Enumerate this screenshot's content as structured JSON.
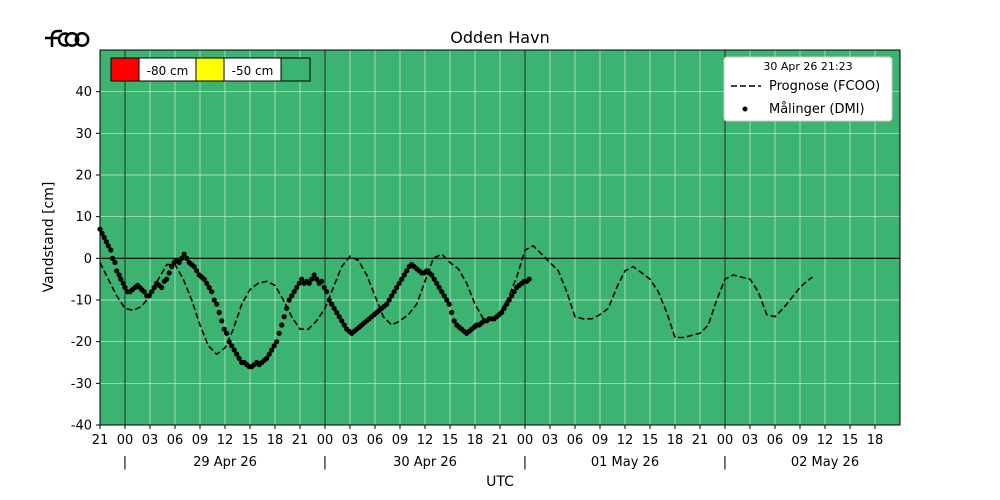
{
  "logo": {
    "text": "fcoo"
  },
  "chart_data": {
    "type": "line",
    "title": "Odden Havn",
    "xlabel": "UTC",
    "ylabel": "Vandstand [cm]",
    "ylim": [
      -40,
      50
    ],
    "yticks": [
      -40,
      -30,
      -20,
      -10,
      0,
      10,
      20,
      30,
      40
    ],
    "x_unit": "hours since 28 Apr 26 21:00 UTC",
    "xlim": [
      0,
      96
    ],
    "xtick_labels": [
      "21",
      "00",
      "03",
      "06",
      "09",
      "12",
      "15",
      "18",
      "21",
      "00",
      "03",
      "06",
      "09",
      "12",
      "15",
      "18",
      "21",
      "00",
      "03",
      "06",
      "09",
      "12",
      "15",
      "18",
      "21",
      "00",
      "03",
      "06",
      "09",
      "12",
      "15",
      "18"
    ],
    "day_labels": [
      "29 Apr 26",
      "30 Apr 26",
      "01 May 26",
      "02 May 26"
    ],
    "day_separator": "|",
    "background_color": "#3cb371",
    "grid": true,
    "legend": {
      "placement": "top-right",
      "timestamp": "30 Apr 26 21:23",
      "entries": [
        "Prognose (FCOO)",
        "Målinger (DMI)"
      ]
    },
    "thresholds": [
      {
        "label": "-80 cm",
        "color": "#ff0000"
      },
      {
        "label": "-50 cm",
        "color": "#ffff00"
      },
      {
        "label": "",
        "color": "#3cb371"
      }
    ],
    "series": [
      {
        "name": "Prognose (FCOO)",
        "style": "dashed",
        "color": "#000000",
        "points": [
          [
            0,
            -1
          ],
          [
            1,
            -5
          ],
          [
            2,
            -9
          ],
          [
            3,
            -12
          ],
          [
            4,
            -12.5
          ],
          [
            5,
            -11.5
          ],
          [
            6,
            -9
          ],
          [
            7,
            -5
          ],
          [
            8,
            -1.5
          ],
          [
            9,
            -1.5
          ],
          [
            10,
            -5
          ],
          [
            11,
            -10
          ],
          [
            12,
            -16
          ],
          [
            13,
            -21
          ],
          [
            14,
            -23
          ],
          [
            15,
            -21.5
          ],
          [
            16,
            -17
          ],
          [
            17,
            -11
          ],
          [
            18,
            -7.5
          ],
          [
            19,
            -6
          ],
          [
            20,
            -5.5
          ],
          [
            21,
            -6.5
          ],
          [
            22,
            -10
          ],
          [
            23,
            -14
          ],
          [
            24,
            -17
          ],
          [
            25,
            -17
          ],
          [
            26,
            -15
          ],
          [
            27,
            -12
          ],
          [
            28,
            -7
          ],
          [
            29,
            -2
          ],
          [
            30,
            0.5
          ],
          [
            31,
            -0.5
          ],
          [
            32,
            -4
          ],
          [
            33,
            -9
          ],
          [
            34,
            -14
          ],
          [
            35,
            -16
          ],
          [
            36,
            -15
          ],
          [
            37,
            -13.5
          ],
          [
            38,
            -11
          ],
          [
            39,
            -5.5
          ],
          [
            40,
            0
          ],
          [
            41,
            1
          ],
          [
            42,
            -1
          ],
          [
            43,
            -2.5
          ],
          [
            44,
            -6
          ],
          [
            45,
            -11
          ],
          [
            46,
            -14.5
          ],
          [
            47,
            -14.5
          ],
          [
            48,
            -13
          ],
          [
            49,
            -9.5
          ],
          [
            50,
            -4.5
          ],
          [
            51,
            2
          ],
          [
            52,
            3
          ],
          [
            53,
            1
          ],
          [
            54,
            -1
          ],
          [
            55,
            -3
          ],
          [
            56,
            -8
          ],
          [
            57,
            -14
          ],
          [
            58,
            -14.5
          ],
          [
            59,
            -14.5
          ],
          [
            60,
            -13.5
          ],
          [
            61,
            -12
          ],
          [
            62,
            -7
          ],
          [
            63,
            -3
          ],
          [
            64,
            -2
          ],
          [
            65,
            -3.5
          ],
          [
            66,
            -5
          ],
          [
            67,
            -8
          ],
          [
            68,
            -13
          ],
          [
            69,
            -19
          ],
          [
            70,
            -19
          ],
          [
            71,
            -18.5
          ],
          [
            72,
            -18
          ],
          [
            73,
            -16
          ],
          [
            74,
            -10
          ],
          [
            75,
            -5
          ],
          [
            76,
            -4
          ],
          [
            77,
            -4.5
          ],
          [
            78,
            -5
          ],
          [
            79,
            -8
          ],
          [
            80,
            -13.5
          ],
          [
            81,
            -14
          ],
          [
            82,
            -12
          ],
          [
            83,
            -9.5
          ],
          [
            84,
            -7
          ],
          [
            84.8,
            -5.5
          ],
          [
            85.5,
            -4.5
          ]
        ]
      },
      {
        "name": "Målinger (DMI)",
        "style": "points",
        "color": "#000000",
        "points": [
          [
            0,
            7
          ],
          [
            0.25,
            6
          ],
          [
            0.5,
            5
          ],
          [
            0.75,
            4
          ],
          [
            1,
            3
          ],
          [
            1.3,
            2
          ],
          [
            1.5,
            0
          ],
          [
            1.8,
            -1
          ],
          [
            2,
            -3
          ],
          [
            2.3,
            -4
          ],
          [
            2.5,
            -5
          ],
          [
            2.8,
            -6
          ],
          [
            3,
            -7
          ],
          [
            3.3,
            -8
          ],
          [
            3.6,
            -8
          ],
          [
            3.9,
            -7.5
          ],
          [
            4.2,
            -7
          ],
          [
            4.5,
            -6.5
          ],
          [
            4.8,
            -7
          ],
          [
            5,
            -7.5
          ],
          [
            5.3,
            -8
          ],
          [
            5.6,
            -9
          ],
          [
            5.9,
            -9
          ],
          [
            6.2,
            -8
          ],
          [
            6.5,
            -7
          ],
          [
            6.8,
            -6
          ],
          [
            7.1,
            -6.5
          ],
          [
            7.4,
            -7
          ],
          [
            7.7,
            -5.5
          ],
          [
            8,
            -5
          ],
          [
            8.3,
            -3.5
          ],
          [
            8.6,
            -2
          ],
          [
            8.9,
            -1
          ],
          [
            9.2,
            -0.5
          ],
          [
            9.5,
            -1
          ],
          [
            9.8,
            0
          ],
          [
            10.1,
            1
          ],
          [
            10.4,
            0
          ],
          [
            10.7,
            -1
          ],
          [
            11,
            -1.5
          ],
          [
            11.3,
            -2
          ],
          [
            11.6,
            -3
          ],
          [
            11.9,
            -4
          ],
          [
            12.2,
            -4.5
          ],
          [
            12.5,
            -5
          ],
          [
            12.8,
            -6
          ],
          [
            13.1,
            -7
          ],
          [
            13.4,
            -8
          ],
          [
            13.7,
            -10
          ],
          [
            14,
            -11
          ],
          [
            14.3,
            -13
          ],
          [
            14.6,
            -15
          ],
          [
            14.9,
            -17
          ],
          [
            15.2,
            -18
          ],
          [
            15.5,
            -20
          ],
          [
            15.8,
            -21
          ],
          [
            16.1,
            -22
          ],
          [
            16.4,
            -23
          ],
          [
            16.7,
            -24
          ],
          [
            17,
            -25
          ],
          [
            17.3,
            -25
          ],
          [
            17.6,
            -25.5
          ],
          [
            17.9,
            -26
          ],
          [
            18.2,
            -26
          ],
          [
            18.5,
            -25.5
          ],
          [
            18.8,
            -25
          ],
          [
            19.1,
            -25.5
          ],
          [
            19.4,
            -25
          ],
          [
            19.7,
            -24.5
          ],
          [
            20,
            -24
          ],
          [
            20.3,
            -23
          ],
          [
            20.6,
            -22
          ],
          [
            20.9,
            -21
          ],
          [
            21.2,
            -20
          ],
          [
            21.5,
            -18
          ],
          [
            21.8,
            -16
          ],
          [
            22.1,
            -14
          ],
          [
            22.4,
            -12
          ],
          [
            22.7,
            -10
          ],
          [
            23,
            -9
          ],
          [
            23.3,
            -8
          ],
          [
            23.6,
            -7
          ],
          [
            23.9,
            -6
          ],
          [
            24.2,
            -5
          ],
          [
            24.5,
            -6
          ],
          [
            24.8,
            -5.5
          ],
          [
            25.1,
            -6
          ],
          [
            25.4,
            -5
          ],
          [
            25.7,
            -4
          ],
          [
            26,
            -5
          ],
          [
            26.3,
            -6
          ],
          [
            26.6,
            -5.5
          ],
          [
            26.9,
            -7
          ],
          [
            27.2,
            -8
          ],
          [
            27.5,
            -10
          ],
          [
            27.8,
            -11
          ],
          [
            28.1,
            -12
          ],
          [
            28.4,
            -13
          ],
          [
            28.7,
            -14
          ],
          [
            29,
            -15
          ],
          [
            29.3,
            -16
          ],
          [
            29.6,
            -17
          ],
          [
            29.9,
            -17.5
          ],
          [
            30.2,
            -18
          ],
          [
            30.5,
            -17.5
          ],
          [
            30.8,
            -17
          ],
          [
            31.1,
            -16.5
          ],
          [
            31.4,
            -16
          ],
          [
            31.7,
            -15.5
          ],
          [
            32,
            -15
          ],
          [
            32.3,
            -14.5
          ],
          [
            32.6,
            -14
          ],
          [
            32.9,
            -13.5
          ],
          [
            33.2,
            -13
          ],
          [
            33.5,
            -12.5
          ],
          [
            33.8,
            -12
          ],
          [
            34.1,
            -11.5
          ],
          [
            34.4,
            -11
          ],
          [
            34.7,
            -10
          ],
          [
            35,
            -9
          ],
          [
            35.3,
            -8
          ],
          [
            35.6,
            -7
          ],
          [
            35.9,
            -6
          ],
          [
            36.2,
            -5
          ],
          [
            36.5,
            -4
          ],
          [
            36.8,
            -3
          ],
          [
            37.1,
            -2
          ],
          [
            37.4,
            -1.5
          ],
          [
            37.7,
            -2
          ],
          [
            38,
            -2.5
          ],
          [
            38.3,
            -3
          ],
          [
            38.6,
            -3.5
          ],
          [
            38.9,
            -3.5
          ],
          [
            39.2,
            -3
          ],
          [
            39.5,
            -3.5
          ],
          [
            39.8,
            -4
          ],
          [
            40.1,
            -5
          ],
          [
            40.4,
            -6
          ],
          [
            40.7,
            -7
          ],
          [
            41,
            -8
          ],
          [
            41.3,
            -9
          ],
          [
            41.6,
            -10
          ],
          [
            41.9,
            -11
          ],
          [
            42.2,
            -13
          ],
          [
            42.5,
            -15
          ],
          [
            42.8,
            -16
          ],
          [
            43.1,
            -16.5
          ],
          [
            43.4,
            -17
          ],
          [
            43.7,
            -17.5
          ],
          [
            44,
            -18
          ],
          [
            44.3,
            -17.5
          ],
          [
            44.6,
            -17
          ],
          [
            44.9,
            -16.5
          ],
          [
            45.2,
            -16
          ],
          [
            45.5,
            -16
          ],
          [
            45.8,
            -15.5
          ],
          [
            46.1,
            -15
          ],
          [
            46.4,
            -15
          ],
          [
            46.7,
            -14.5
          ],
          [
            47,
            -14.5
          ],
          [
            47.3,
            -14.5
          ],
          [
            47.6,
            -14
          ],
          [
            47.9,
            -13.5
          ],
          [
            48.2,
            -13
          ],
          [
            48.5,
            -12
          ],
          [
            48.8,
            -11
          ],
          [
            49.1,
            -10
          ],
          [
            49.4,
            -9
          ],
          [
            49.7,
            -8
          ],
          [
            50,
            -7
          ],
          [
            50.3,
            -6.5
          ],
          [
            50.6,
            -6
          ],
          [
            50.9,
            -5.5
          ],
          [
            51.2,
            -5.5
          ],
          [
            51.5,
            -5
          ]
        ]
      }
    ]
  }
}
